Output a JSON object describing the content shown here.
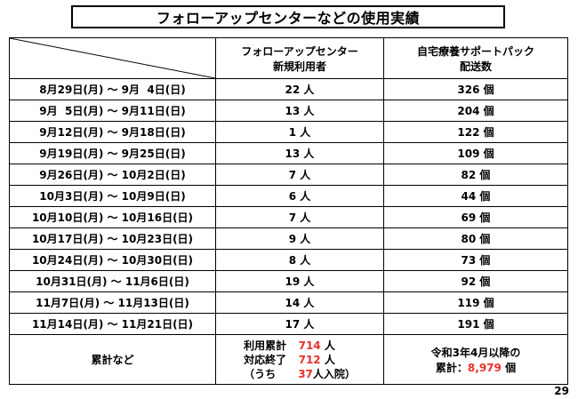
{
  "title": "フォローアップセンターなどの使用実績",
  "header": {
    "col2_line1": "フォローアップセンター",
    "col2_line2": "新規利用者",
    "col3_line1": "自宅療養サポートパック",
    "col3_line2": "配送数"
  },
  "rows": [
    {
      "period": "8月29日(月) ～ 9月  4日(日)",
      "users": "22 人",
      "packs": "326 個"
    },
    {
      "period": "9月  5日(月) ～ 9月11日(日)",
      "users": "13 人",
      "packs": "204 個"
    },
    {
      "period": "9月12日(月) ～ 9月18日(日)",
      "users": "1 人",
      "packs": "122 個"
    },
    {
      "period": "9月19日(月) ～ 9月25日(日)",
      "users": "13 人",
      "packs": "109 個"
    },
    {
      "period": "9月26日(月) ～ 10月2日(日)",
      "users": "7 人",
      "packs": "82 個"
    },
    {
      "period": "10月3日(月) ～ 10月9日(日)",
      "users": "6 人",
      "packs": "44 個"
    },
    {
      "period": "10月10日(月) ～ 10月16日(日)",
      "users": "7 人",
      "packs": "69 個"
    },
    {
      "period": "10月17日(月) ～ 10月23日(日)",
      "users": "9 人",
      "packs": "80 個"
    },
    {
      "period": "10月24日(月) ～ 10月30日(日)",
      "users": "8 人",
      "packs": "73 個"
    },
    {
      "period": "10月31日(月) ～ 11月6日(日)",
      "users": "19 人",
      "packs": "92 個"
    },
    {
      "period": "11月7日(月) ～ 11月13日(日)",
      "users": "14 人",
      "packs": "119 個"
    },
    {
      "period": "11月14日(月) ～ 11月21日(日)",
      "users": "17 人",
      "packs": "191 個"
    }
  ],
  "totals": {
    "label": "累計など",
    "cumulative_label": "利用累計",
    "cumulative_value": "714",
    "cumulative_unit": "人",
    "ended_label": "対応終了",
    "ended_value": "712",
    "ended_unit": "人",
    "hosp_prefix": "（うち",
    "hosp_value": "37",
    "hosp_suffix": "人入院）",
    "packs_line1": "令和3年4月以降の",
    "packs_prefix": "累計：",
    "packs_value": "8,979",
    "packs_unit": "個"
  },
  "page_number": "29",
  "colors": {
    "highlight": "#e8312a"
  }
}
